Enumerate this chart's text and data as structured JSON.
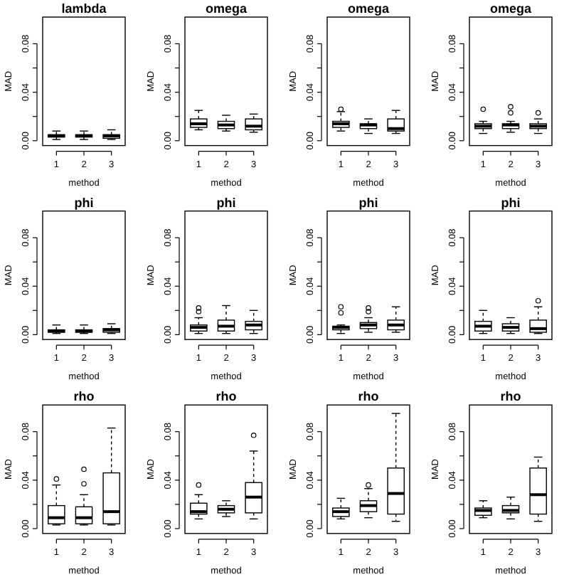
{
  "chart_data": [
    {
      "type": "box",
      "title": "lambda",
      "xlabel": "method",
      "ylabel": "MAD",
      "categories": [
        "1",
        "2",
        "3"
      ],
      "ylim": [
        -0.004,
        0.102
      ],
      "yticks": [
        {
          "value": 0,
          "label": "0.00"
        },
        {
          "value": 0.02,
          "label": null
        },
        {
          "value": 0.04,
          "label": "0.04"
        },
        {
          "value": 0.06,
          "label": null
        },
        {
          "value": 0.08,
          "label": "0.08"
        }
      ],
      "grid": false,
      "boxes": [
        {
          "low": 0.001,
          "q1": 0.003,
          "median": 0.004,
          "q3": 0.005,
          "high": 0.008
        },
        {
          "low": 0.001,
          "q1": 0.003,
          "median": 0.004,
          "q3": 0.005,
          "high": 0.008
        },
        {
          "low": 0.001,
          "q1": 0.002,
          "median": 0.004,
          "q3": 0.005,
          "high": 0.009
        }
      ]
    },
    {
      "type": "box",
      "title": "omega",
      "xlabel": "method",
      "ylabel": "MAD",
      "categories": [
        "1",
        "2",
        "3"
      ],
      "ylim": [
        -0.004,
        0.102
      ],
      "yticks": [
        {
          "value": 0,
          "label": "0.00"
        },
        {
          "value": 0.02,
          "label": null
        },
        {
          "value": 0.04,
          "label": "0.04"
        },
        {
          "value": 0.06,
          "label": null
        },
        {
          "value": 0.08,
          "label": "0.08"
        }
      ],
      "grid": false,
      "boxes": [
        {
          "low": 0.009,
          "q1": 0.011,
          "median": 0.014,
          "q3": 0.018,
          "high": 0.025
        },
        {
          "low": 0.008,
          "q1": 0.01,
          "median": 0.013,
          "q3": 0.016,
          "high": 0.021
        },
        {
          "low": 0.007,
          "q1": 0.009,
          "median": 0.012,
          "q3": 0.018,
          "high": 0.022
        }
      ]
    },
    {
      "type": "box",
      "title": "omega",
      "xlabel": "method",
      "ylabel": "MAD",
      "categories": [
        "1",
        "2",
        "3"
      ],
      "ylim": [
        -0.004,
        0.102
      ],
      "yticks": [
        {
          "value": 0,
          "label": "0.00"
        },
        {
          "value": 0.02,
          "label": null
        },
        {
          "value": 0.04,
          "label": "0.04"
        },
        {
          "value": 0.06,
          "label": null
        },
        {
          "value": 0.08,
          "label": "0.08"
        }
      ],
      "grid": false,
      "boxes": [
        {
          "low": 0.008,
          "q1": 0.011,
          "median": 0.014,
          "q3": 0.016,
          "high": 0.024,
          "outliers": [
            0.026
          ]
        },
        {
          "low": 0.006,
          "q1": 0.01,
          "median": 0.013,
          "q3": 0.014,
          "high": 0.018
        },
        {
          "low": 0.006,
          "q1": 0.008,
          "median": 0.01,
          "q3": 0.018,
          "high": 0.025
        }
      ]
    },
    {
      "type": "box",
      "title": "omega",
      "xlabel": "method",
      "ylabel": "MAD",
      "categories": [
        "1",
        "2",
        "3"
      ],
      "ylim": [
        -0.004,
        0.102
      ],
      "yticks": [
        {
          "value": 0,
          "label": "0.00"
        },
        {
          "value": 0.02,
          "label": null
        },
        {
          "value": 0.04,
          "label": "0.04"
        },
        {
          "value": 0.06,
          "label": null
        },
        {
          "value": 0.08,
          "label": "0.08"
        }
      ],
      "grid": false,
      "boxes": [
        {
          "low": 0.006,
          "q1": 0.01,
          "median": 0.012,
          "q3": 0.014,
          "high": 0.016,
          "outliers": [
            0.026
          ]
        },
        {
          "low": 0.007,
          "q1": 0.01,
          "median": 0.013,
          "q3": 0.014,
          "high": 0.016,
          "outliers": [
            0.028,
            0.023
          ]
        },
        {
          "low": 0.006,
          "q1": 0.01,
          "median": 0.012,
          "q3": 0.014,
          "high": 0.018,
          "outliers": [
            0.023
          ]
        }
      ]
    },
    {
      "type": "box",
      "title": "phi",
      "xlabel": "method",
      "ylabel": "MAD",
      "categories": [
        "1",
        "2",
        "3"
      ],
      "ylim": [
        -0.004,
        0.102
      ],
      "yticks": [
        {
          "value": 0,
          "label": "0.00"
        },
        {
          "value": 0.02,
          "label": null
        },
        {
          "value": 0.04,
          "label": "0.04"
        },
        {
          "value": 0.06,
          "label": null
        },
        {
          "value": 0.08,
          "label": "0.08"
        }
      ],
      "grid": false,
      "boxes": [
        {
          "low": 0.001,
          "q1": 0.002,
          "median": 0.003,
          "q3": 0.004,
          "high": 0.008
        },
        {
          "low": 0.001,
          "q1": 0.002,
          "median": 0.003,
          "q3": 0.004,
          "high": 0.008
        },
        {
          "low": 0.001,
          "q1": 0.002,
          "median": 0.004,
          "q3": 0.005,
          "high": 0.009
        }
      ]
    },
    {
      "type": "box",
      "title": "phi",
      "xlabel": "method",
      "ylabel": "MAD",
      "categories": [
        "1",
        "2",
        "3"
      ],
      "ylim": [
        -0.004,
        0.102
      ],
      "yticks": [
        {
          "value": 0,
          "label": "0.00"
        },
        {
          "value": 0.02,
          "label": null
        },
        {
          "value": 0.04,
          "label": "0.04"
        },
        {
          "value": 0.06,
          "label": null
        },
        {
          "value": 0.08,
          "label": "0.08"
        }
      ],
      "grid": false,
      "boxes": [
        {
          "low": 0.001,
          "q1": 0.003,
          "median": 0.006,
          "q3": 0.008,
          "high": 0.014,
          "outliers": [
            0.022,
            0.019
          ]
        },
        {
          "low": 0.001,
          "q1": 0.003,
          "median": 0.007,
          "q3": 0.012,
          "high": 0.024
        },
        {
          "low": 0.001,
          "q1": 0.004,
          "median": 0.008,
          "q3": 0.011,
          "high": 0.02
        }
      ]
    },
    {
      "type": "box",
      "title": "phi",
      "xlabel": "method",
      "ylabel": "MAD",
      "categories": [
        "1",
        "2",
        "3"
      ],
      "ylim": [
        -0.004,
        0.102
      ],
      "yticks": [
        {
          "value": 0,
          "label": "0.00"
        },
        {
          "value": 0.02,
          "label": null
        },
        {
          "value": 0.04,
          "label": "0.04"
        },
        {
          "value": 0.06,
          "label": null
        },
        {
          "value": 0.08,
          "label": "0.08"
        }
      ],
      "grid": false,
      "boxes": [
        {
          "low": 0.001,
          "q1": 0.004,
          "median": 0.006,
          "q3": 0.007,
          "high": 0.008,
          "outliers": [
            0.023,
            0.018
          ]
        },
        {
          "low": 0.002,
          "q1": 0.005,
          "median": 0.008,
          "q3": 0.01,
          "high": 0.014,
          "outliers": [
            0.022,
            0.019
          ]
        },
        {
          "low": 0.002,
          "q1": 0.004,
          "median": 0.008,
          "q3": 0.012,
          "high": 0.023
        }
      ]
    },
    {
      "type": "box",
      "title": "phi",
      "xlabel": "method",
      "ylabel": "MAD",
      "categories": [
        "1",
        "2",
        "3"
      ],
      "ylim": [
        -0.004,
        0.102
      ],
      "yticks": [
        {
          "value": 0,
          "label": "0.00"
        },
        {
          "value": 0.02,
          "label": null
        },
        {
          "value": 0.04,
          "label": "0.04"
        },
        {
          "value": 0.06,
          "label": null
        },
        {
          "value": 0.08,
          "label": "0.08"
        }
      ],
      "grid": false,
      "boxes": [
        {
          "low": 0.001,
          "q1": 0.003,
          "median": 0.007,
          "q3": 0.011,
          "high": 0.02
        },
        {
          "low": 0.001,
          "q1": 0.003,
          "median": 0.006,
          "q3": 0.009,
          "high": 0.014
        },
        {
          "low": 0.001,
          "q1": 0.002,
          "median": 0.005,
          "q3": 0.012,
          "high": 0.023,
          "outliers": [
            0.028
          ]
        }
      ]
    },
    {
      "type": "box",
      "title": "rho",
      "xlabel": "method",
      "ylabel": "MAD",
      "categories": [
        "1",
        "2",
        "3"
      ],
      "ylim": [
        -0.004,
        0.102
      ],
      "yticks": [
        {
          "value": 0,
          "label": "0.00"
        },
        {
          "value": 0.02,
          "label": null
        },
        {
          "value": 0.04,
          "label": "0.04"
        },
        {
          "value": 0.06,
          "label": null
        },
        {
          "value": 0.08,
          "label": "0.08"
        }
      ],
      "grid": false,
      "boxes": [
        {
          "low": 0.003,
          "q1": 0.004,
          "median": 0.009,
          "q3": 0.019,
          "high": 0.036,
          "outliers": [
            0.041
          ]
        },
        {
          "low": 0.003,
          "q1": 0.004,
          "median": 0.009,
          "q3": 0.018,
          "high": 0.028,
          "outliers": [
            0.049,
            0.037
          ]
        },
        {
          "low": 0.003,
          "q1": 0.004,
          "median": 0.014,
          "q3": 0.046,
          "high": 0.083
        }
      ]
    },
    {
      "type": "box",
      "title": "rho",
      "xlabel": "method",
      "ylabel": "MAD",
      "categories": [
        "1",
        "2",
        "3"
      ],
      "ylim": [
        -0.004,
        0.102
      ],
      "yticks": [
        {
          "value": 0,
          "label": "0.00"
        },
        {
          "value": 0.02,
          "label": null
        },
        {
          "value": 0.04,
          "label": "0.04"
        },
        {
          "value": 0.06,
          "label": null
        },
        {
          "value": 0.08,
          "label": "0.08"
        }
      ],
      "grid": false,
      "boxes": [
        {
          "low": 0.008,
          "q1": 0.012,
          "median": 0.014,
          "q3": 0.021,
          "high": 0.028,
          "outliers": [
            0.036
          ]
        },
        {
          "low": 0.01,
          "q1": 0.013,
          "median": 0.016,
          "q3": 0.019,
          "high": 0.023
        },
        {
          "low": 0.008,
          "q1": 0.013,
          "median": 0.026,
          "q3": 0.038,
          "high": 0.064,
          "outliers": [
            0.077
          ]
        }
      ]
    },
    {
      "type": "box",
      "title": "rho",
      "xlabel": "method",
      "ylabel": "MAD",
      "categories": [
        "1",
        "2",
        "3"
      ],
      "ylim": [
        -0.004,
        0.102
      ],
      "yticks": [
        {
          "value": 0,
          "label": "0.00"
        },
        {
          "value": 0.02,
          "label": null
        },
        {
          "value": 0.04,
          "label": "0.04"
        },
        {
          "value": 0.06,
          "label": null
        },
        {
          "value": 0.08,
          "label": "0.08"
        }
      ],
      "grid": false,
      "boxes": [
        {
          "low": 0.008,
          "q1": 0.01,
          "median": 0.014,
          "q3": 0.017,
          "high": 0.025
        },
        {
          "low": 0.009,
          "q1": 0.014,
          "median": 0.019,
          "q3": 0.023,
          "high": 0.033,
          "outliers": [
            0.036
          ]
        },
        {
          "low": 0.006,
          "q1": 0.012,
          "median": 0.029,
          "q3": 0.05,
          "high": 0.095
        }
      ]
    },
    {
      "type": "box",
      "title": "rho",
      "xlabel": "method",
      "ylabel": "MAD",
      "categories": [
        "1",
        "2",
        "3"
      ],
      "ylim": [
        -0.004,
        0.102
      ],
      "yticks": [
        {
          "value": 0,
          "label": "0.00"
        },
        {
          "value": 0.02,
          "label": null
        },
        {
          "value": 0.04,
          "label": "0.04"
        },
        {
          "value": 0.06,
          "label": null
        },
        {
          "value": 0.08,
          "label": "0.08"
        }
      ],
      "grid": false,
      "boxes": [
        {
          "low": 0.009,
          "q1": 0.011,
          "median": 0.015,
          "q3": 0.017,
          "high": 0.023
        },
        {
          "low": 0.008,
          "q1": 0.013,
          "median": 0.015,
          "q3": 0.019,
          "high": 0.026
        },
        {
          "low": 0.006,
          "q1": 0.012,
          "median": 0.028,
          "q3": 0.05,
          "high": 0.059
        }
      ]
    }
  ]
}
